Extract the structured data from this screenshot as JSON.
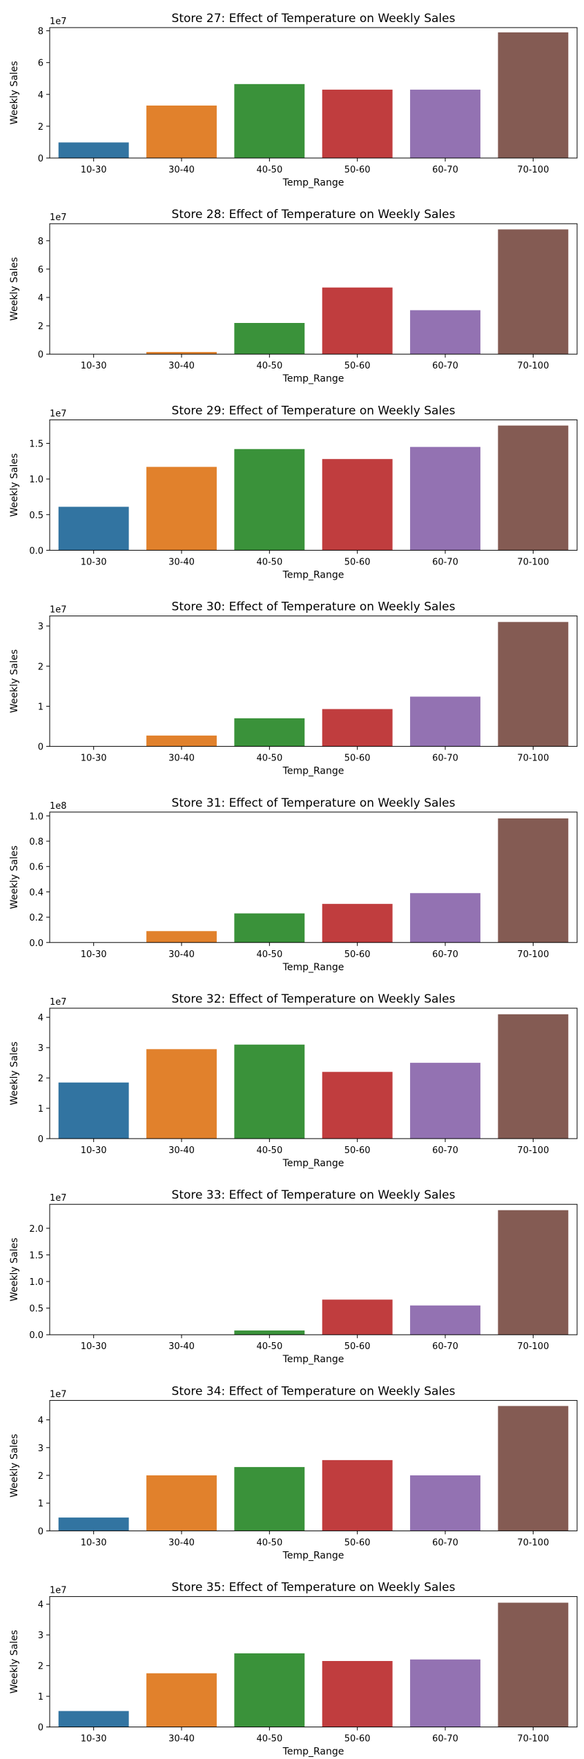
{
  "colors": [
    "#3274a1",
    "#e1812c",
    "#3a923a",
    "#c03d3e",
    "#9372b2",
    "#845b53"
  ],
  "chart_data": [
    {
      "type": "bar",
      "title": "Store  27: Effect of Temperature on Weekly Sales",
      "xlabel": "Temp_Range",
      "ylabel": "Weekly Sales",
      "scale_label": "1e7",
      "scale": 10000000,
      "ylim": [
        0,
        82000000
      ],
      "yticks": [
        0,
        20000000,
        40000000,
        60000000,
        80000000
      ],
      "ytick_labels": [
        "0",
        "2",
        "4",
        "6",
        "8"
      ],
      "categories": [
        "10-30",
        "30-40",
        "40-50",
        "50-60",
        "60-70",
        "70-100"
      ],
      "values": [
        9800000,
        33000000,
        46500000,
        43000000,
        43000000,
        79000000
      ]
    },
    {
      "type": "bar",
      "title": "Store  28: Effect of Temperature on Weekly Sales",
      "xlabel": "Temp_Range",
      "ylabel": "Weekly Sales",
      "scale_label": "1e7",
      "scale": 10000000,
      "ylim": [
        0,
        92000000
      ],
      "yticks": [
        0,
        20000000,
        40000000,
        60000000,
        80000000
      ],
      "ytick_labels": [
        "0",
        "2",
        "4",
        "6",
        "8"
      ],
      "categories": [
        "10-30",
        "30-40",
        "40-50",
        "50-60",
        "60-70",
        "70-100"
      ],
      "values": [
        0,
        1500000,
        22000000,
        47000000,
        31000000,
        88000000
      ]
    },
    {
      "type": "bar",
      "title": "Store  29: Effect of Temperature on Weekly Sales",
      "xlabel": "Temp_Range",
      "ylabel": "Weekly Sales",
      "scale_label": "1e7",
      "scale": 10000000,
      "ylim": [
        0,
        18300000
      ],
      "yticks": [
        0,
        5000000,
        10000000,
        15000000
      ],
      "ytick_labels": [
        "0.0",
        "0.5",
        "1.0",
        "1.5"
      ],
      "categories": [
        "10-30",
        "30-40",
        "40-50",
        "50-60",
        "60-70",
        "70-100"
      ],
      "values": [
        6100000,
        11700000,
        14200000,
        12800000,
        14500000,
        17500000
      ]
    },
    {
      "type": "bar",
      "title": "Store  30: Effect of Temperature on Weekly Sales",
      "xlabel": "Temp_Range",
      "ylabel": "Weekly Sales",
      "scale_label": "1e7",
      "scale": 10000000,
      "ylim": [
        0,
        32500000
      ],
      "yticks": [
        0,
        10000000,
        20000000,
        30000000
      ],
      "ytick_labels": [
        "0",
        "1",
        "2",
        "3"
      ],
      "categories": [
        "10-30",
        "30-40",
        "40-50",
        "50-60",
        "60-70",
        "70-100"
      ],
      "values": [
        0,
        2700000,
        7000000,
        9300000,
        12400000,
        31000000
      ]
    },
    {
      "type": "bar",
      "title": "Store  31: Effect of Temperature on Weekly Sales",
      "xlabel": "Temp_Range",
      "ylabel": "Weekly Sales",
      "scale_label": "1e8",
      "scale": 100000000,
      "ylim": [
        0,
        103000000
      ],
      "yticks": [
        0,
        20000000,
        40000000,
        60000000,
        80000000,
        100000000
      ],
      "ytick_labels": [
        "0.0",
        "0.2",
        "0.4",
        "0.6",
        "0.8",
        "1.0"
      ],
      "categories": [
        "10-30",
        "30-40",
        "40-50",
        "50-60",
        "60-70",
        "70-100"
      ],
      "values": [
        0,
        9000000,
        23000000,
        30500000,
        39000000,
        98000000
      ]
    },
    {
      "type": "bar",
      "title": "Store  32: Effect of Temperature on Weekly Sales",
      "xlabel": "Temp_Range",
      "ylabel": "Weekly Sales",
      "scale_label": "1e7",
      "scale": 10000000,
      "ylim": [
        0,
        43000000
      ],
      "yticks": [
        0,
        10000000,
        20000000,
        30000000,
        40000000
      ],
      "ytick_labels": [
        "0",
        "1",
        "2",
        "3",
        "4"
      ],
      "categories": [
        "10-30",
        "30-40",
        "40-50",
        "50-60",
        "60-70",
        "70-100"
      ],
      "values": [
        18500000,
        29500000,
        31000000,
        22000000,
        25000000,
        41000000
      ]
    },
    {
      "type": "bar",
      "title": "Store  33: Effect of Temperature on Weekly Sales",
      "xlabel": "Temp_Range",
      "ylabel": "Weekly Sales",
      "scale_label": "1e7",
      "scale": 10000000,
      "ylim": [
        0,
        24500000
      ],
      "yticks": [
        0,
        5000000,
        10000000,
        15000000,
        20000000
      ],
      "ytick_labels": [
        "0.0",
        "0.5",
        "1.0",
        "1.5",
        "2.0"
      ],
      "categories": [
        "10-30",
        "30-40",
        "40-50",
        "50-60",
        "60-70",
        "70-100"
      ],
      "values": [
        0,
        0,
        800000,
        6600000,
        5500000,
        23400000
      ]
    },
    {
      "type": "bar",
      "title": "Store  34: Effect of Temperature on Weekly Sales",
      "xlabel": "Temp_Range",
      "ylabel": "Weekly Sales",
      "scale_label": "1e7",
      "scale": 10000000,
      "ylim": [
        0,
        47000000
      ],
      "yticks": [
        0,
        10000000,
        20000000,
        30000000,
        40000000
      ],
      "ytick_labels": [
        "0",
        "1",
        "2",
        "3",
        "4"
      ],
      "categories": [
        "10-30",
        "30-40",
        "40-50",
        "50-60",
        "60-70",
        "70-100"
      ],
      "values": [
        4800000,
        20000000,
        23000000,
        25500000,
        20000000,
        45000000
      ]
    },
    {
      "type": "bar",
      "title": "Store  35: Effect of Temperature on Weekly Sales",
      "xlabel": "Temp_Range",
      "ylabel": "Weekly Sales",
      "scale_label": "1e7",
      "scale": 10000000,
      "ylim": [
        0,
        42500000
      ],
      "yticks": [
        0,
        10000000,
        20000000,
        30000000,
        40000000
      ],
      "ytick_labels": [
        "0",
        "1",
        "2",
        "3",
        "4"
      ],
      "categories": [
        "10-30",
        "30-40",
        "40-50",
        "50-60",
        "60-70",
        "70-100"
      ],
      "values": [
        5200000,
        17500000,
        24000000,
        21500000,
        22000000,
        40500000
      ]
    }
  ]
}
